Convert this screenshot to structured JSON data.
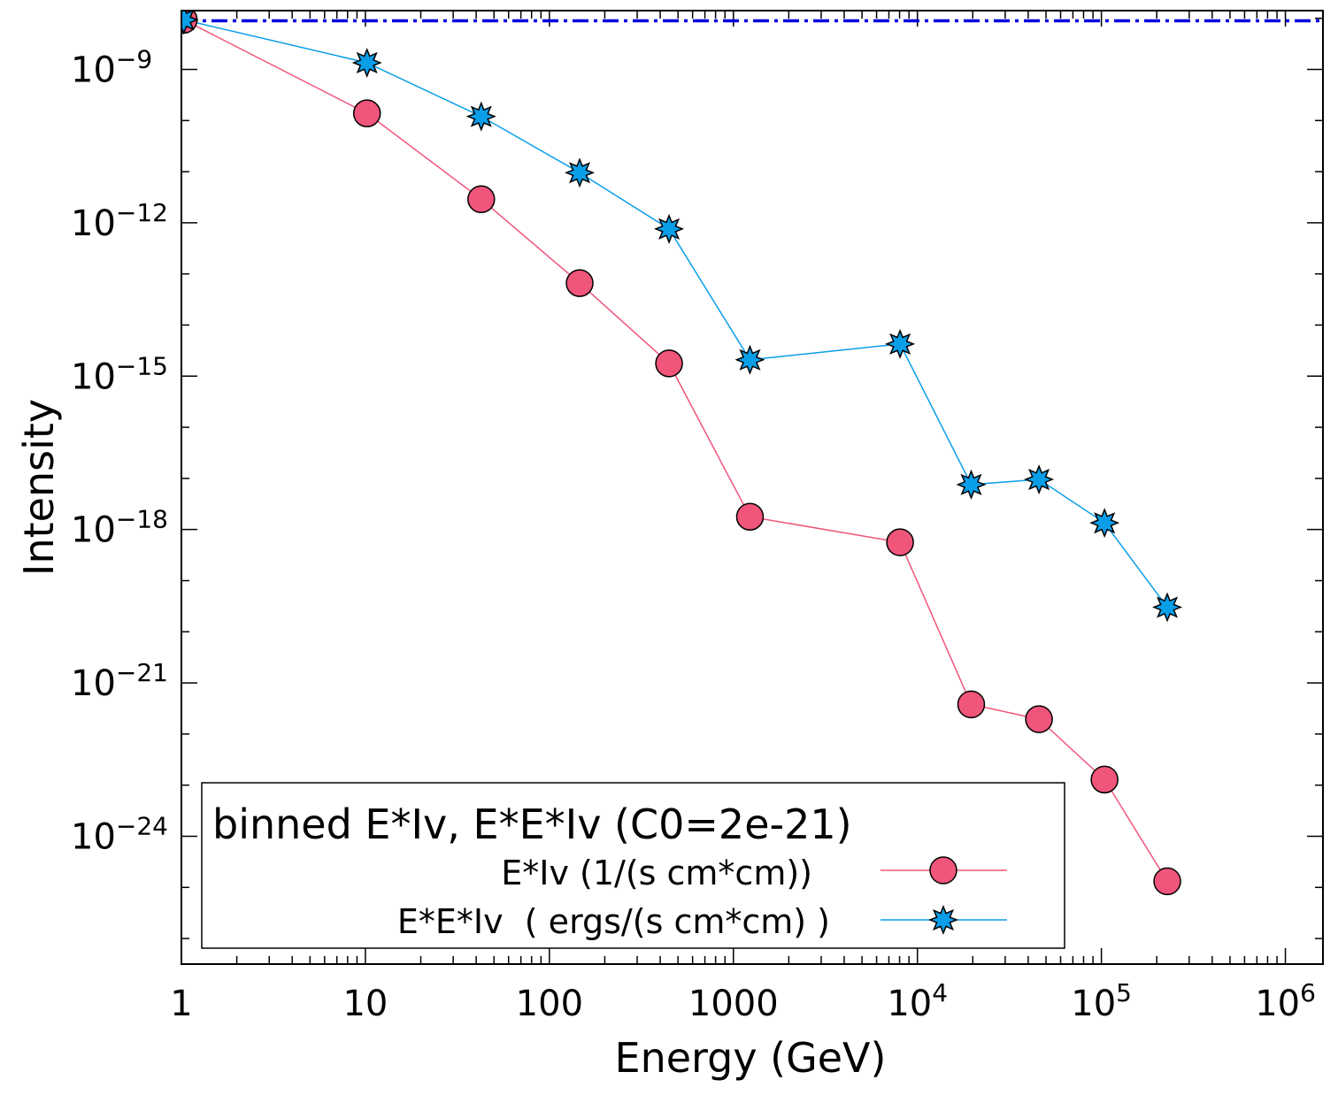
{
  "chart_data": {
    "type": "line",
    "title": "",
    "xlabel": "Energy (GeV)",
    "ylabel": "Intensity",
    "xscale": "log",
    "yscale": "log",
    "xlim": [
      1,
      1600000
    ],
    "ylim_log10": [
      -26.5,
      -7.85
    ],
    "x_ticks": [
      {
        "value": 1,
        "base": "1",
        "exp": ""
      },
      {
        "value": 10,
        "base": "10",
        "exp": ""
      },
      {
        "value": 100,
        "base": "100",
        "exp": ""
      },
      {
        "value": 1000,
        "base": "1000",
        "exp": ""
      },
      {
        "value": 10000,
        "base": "10",
        "exp": "4"
      },
      {
        "value": 100000,
        "base": "10",
        "exp": "5"
      },
      {
        "value": 1000000,
        "base": "10",
        "exp": "6"
      }
    ],
    "y_ticks": [
      {
        "log10": -9,
        "base": "10",
        "exp": "−9"
      },
      {
        "log10": -12,
        "base": "10",
        "exp": "−12"
      },
      {
        "log10": -15,
        "base": "10",
        "exp": "−15"
      },
      {
        "log10": -18,
        "base": "10",
        "exp": "−18"
      },
      {
        "log10": -21,
        "base": "10",
        "exp": "−21"
      },
      {
        "log10": -24,
        "base": "10",
        "exp": "−24"
      }
    ],
    "series": [
      {
        "name": "E*Iv (1/(s cm*cm))",
        "color": "#f0557a",
        "marker": "circle",
        "x": [
          1.03,
          10.2,
          42.6,
          146,
          447,
          1230,
          8050,
          19600,
          45800,
          104000,
          228000
        ],
        "log10_y": [
          -8.03,
          -9.86,
          -11.54,
          -13.18,
          -14.75,
          -17.75,
          -18.25,
          -21.42,
          -21.71,
          -22.89,
          -24.88
        ]
      },
      {
        "name": "E*E*Iv  ( ergs/(s cm*cm) )",
        "color": "#0a9ee8",
        "marker": "star",
        "x": [
          1.03,
          10.2,
          42.6,
          146,
          447,
          1230,
          8050,
          19600,
          45800,
          104000,
          228000
        ],
        "log10_y": [
          -8.03,
          -8.87,
          -9.92,
          -11.02,
          -12.12,
          -14.68,
          -14.37,
          -17.12,
          -17.02,
          -17.87,
          -19.52
        ]
      },
      {
        "name": "C0",
        "color": "#0000e0",
        "style": "dash-dot",
        "x": [
          1,
          1600000
        ],
        "log10_y": [
          -8.05,
          -8.05
        ]
      }
    ],
    "legend": {
      "title": "binned  E*Iv, E*E*Iv (C0=2e-21)",
      "position": "bottom-left",
      "entries": [
        "E*Iv (1/(s cm*cm))",
        "E*E*Iv  ( ergs/(s cm*cm) )"
      ]
    }
  }
}
